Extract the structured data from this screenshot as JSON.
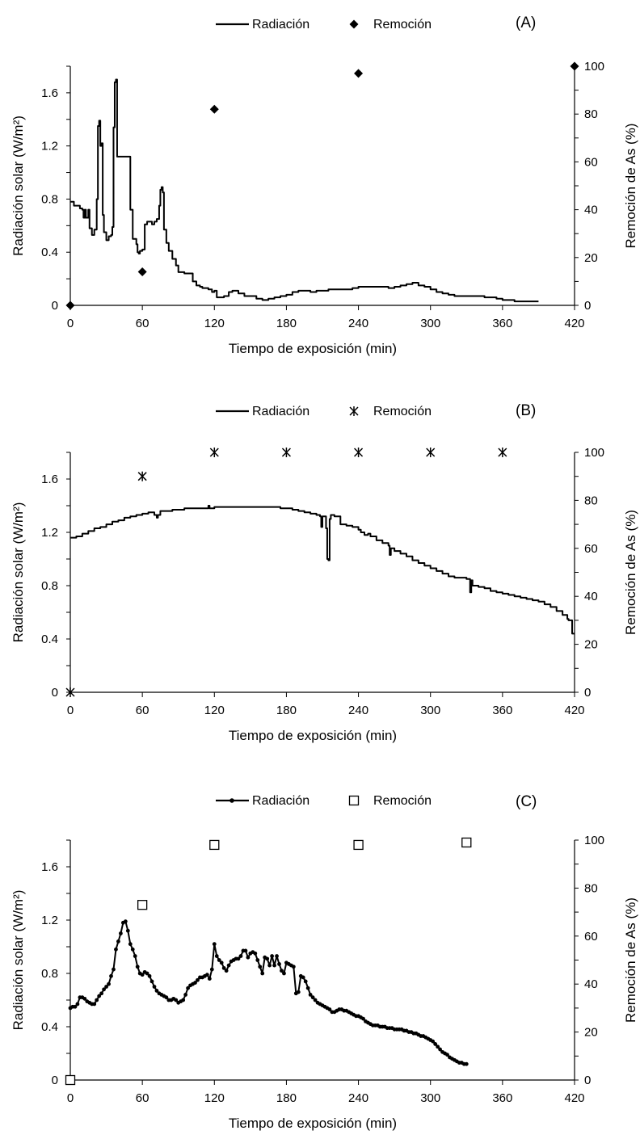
{
  "chart_data": [
    {
      "type": "line",
      "panel_label": "(A)",
      "xlabel": "Tiempo de exposición (min)",
      "ylabel": "Radiación solar (W/m²)",
      "y2label": "Remoción de As (%)",
      "xlim": [
        0,
        420
      ],
      "xticks": [
        "0",
        "60",
        "120",
        "180",
        "240",
        "300",
        "360",
        "420"
      ],
      "ylim": [
        0,
        1.8
      ],
      "yticks": [
        "0",
        "0.4",
        "0.8",
        "1.2",
        "1.6"
      ],
      "y2lim": [
        0,
        100
      ],
      "y2ticks": [
        "0",
        "20",
        "40",
        "60",
        "80",
        "100"
      ],
      "grid": false,
      "legend": {
        "position": "top",
        "entries": [
          "Radiación",
          "Remoción"
        ]
      },
      "series": [
        {
          "name": "Radiación",
          "axis": "left",
          "style": "step-line",
          "x": [
            0,
            2,
            3,
            8,
            10,
            11,
            12,
            13,
            15,
            16,
            18,
            20,
            22,
            23,
            24,
            25,
            26,
            27,
            28,
            29,
            30,
            32,
            34,
            35,
            36,
            37,
            38,
            39,
            40,
            42,
            44,
            45,
            48,
            50,
            52,
            53,
            55,
            56,
            57,
            58,
            60,
            62,
            64,
            66,
            68,
            70,
            72,
            74,
            75,
            76,
            77,
            78,
            80,
            82,
            85,
            88,
            90,
            95,
            100,
            102,
            105,
            108,
            110,
            115,
            118,
            120,
            122,
            125,
            128,
            132,
            135,
            140,
            145,
            150,
            155,
            160,
            165,
            170,
            175,
            180,
            185,
            190,
            195,
            200,
            205,
            210,
            215,
            220,
            225,
            230,
            235,
            240,
            245,
            250,
            255,
            260,
            265,
            270,
            275,
            280,
            285,
            290,
            295,
            300,
            305,
            310,
            315,
            320,
            330,
            340,
            345,
            350,
            355,
            360,
            370,
            380,
            390
          ],
          "y": [
            0.78,
            0.78,
            0.75,
            0.73,
            0.72,
            0.66,
            0.72,
            0.66,
            0.72,
            0.58,
            0.53,
            0.57,
            0.8,
            1.35,
            1.39,
            1.2,
            1.22,
            0.68,
            0.55,
            0.55,
            0.49,
            0.52,
            0.53,
            0.59,
            1.34,
            1.68,
            1.7,
            1.12,
            1.12,
            1.12,
            1.12,
            1.12,
            1.12,
            0.72,
            0.5,
            0.5,
            0.46,
            0.4,
            0.39,
            0.41,
            0.42,
            0.61,
            0.63,
            0.63,
            0.61,
            0.63,
            0.65,
            0.75,
            0.87,
            0.89,
            0.85,
            0.57,
            0.47,
            0.41,
            0.35,
            0.3,
            0.25,
            0.24,
            0.24,
            0.18,
            0.15,
            0.14,
            0.13,
            0.12,
            0.1,
            0.11,
            0.06,
            0.06,
            0.07,
            0.1,
            0.11,
            0.09,
            0.07,
            0.07,
            0.05,
            0.04,
            0.05,
            0.06,
            0.07,
            0.08,
            0.1,
            0.11,
            0.11,
            0.1,
            0.11,
            0.11,
            0.12,
            0.12,
            0.12,
            0.12,
            0.13,
            0.14,
            0.14,
            0.14,
            0.14,
            0.14,
            0.13,
            0.14,
            0.15,
            0.16,
            0.17,
            0.15,
            0.14,
            0.12,
            0.1,
            0.09,
            0.08,
            0.07,
            0.07,
            0.07,
            0.06,
            0.06,
            0.05,
            0.04,
            0.03,
            0.03,
            0.03
          ]
        },
        {
          "name": "Remoción",
          "axis": "right",
          "style": "marker-diamond",
          "x": [
            0,
            60,
            120,
            240,
            420
          ],
          "y": [
            0,
            14,
            82,
            97,
            100
          ]
        }
      ]
    },
    {
      "type": "line",
      "panel_label": "(B)",
      "xlabel": "Tiempo de exposición (min)",
      "ylabel": "Radiación solar (W/m²)",
      "y2label": "Remoción de As (%)",
      "xlim": [
        0,
        420
      ],
      "xticks": [
        "0",
        "60",
        "120",
        "180",
        "240",
        "300",
        "360",
        "420"
      ],
      "ylim": [
        0,
        1.8
      ],
      "yticks": [
        "0",
        "0.4",
        "0.8",
        "1.2",
        "1.6"
      ],
      "y2lim": [
        0,
        100
      ],
      "y2ticks": [
        "0",
        "20",
        "40",
        "60",
        "80",
        "100"
      ],
      "grid": false,
      "legend": {
        "position": "top",
        "entries": [
          "Radiación",
          "Remoción"
        ]
      },
      "series": [
        {
          "name": "Radiación",
          "axis": "left",
          "style": "step-line",
          "x": [
            0,
            5,
            10,
            15,
            20,
            25,
            30,
            35,
            40,
            45,
            50,
            55,
            60,
            65,
            70,
            72,
            73,
            75,
            80,
            85,
            90,
            95,
            100,
            105,
            110,
            114,
            115,
            116,
            120,
            125,
            130,
            135,
            140,
            145,
            150,
            155,
            160,
            165,
            170,
            175,
            180,
            185,
            190,
            195,
            200,
            205,
            208,
            209,
            210,
            212,
            213,
            214,
            215,
            216,
            217,
            218,
            220,
            225,
            230,
            235,
            240,
            242,
            245,
            248,
            250,
            255,
            260,
            265,
            266,
            267,
            270,
            275,
            280,
            285,
            290,
            295,
            300,
            305,
            310,
            315,
            320,
            325,
            330,
            333,
            334,
            335,
            340,
            345,
            350,
            355,
            360,
            365,
            370,
            375,
            380,
            385,
            390,
            395,
            400,
            405,
            410,
            414,
            415,
            416,
            418,
            420
          ],
          "y": [
            1.16,
            1.17,
            1.19,
            1.21,
            1.23,
            1.24,
            1.26,
            1.28,
            1.29,
            1.31,
            1.32,
            1.33,
            1.34,
            1.35,
            1.33,
            1.31,
            1.33,
            1.36,
            1.36,
            1.37,
            1.37,
            1.38,
            1.38,
            1.38,
            1.38,
            1.38,
            1.4,
            1.38,
            1.39,
            1.39,
            1.39,
            1.39,
            1.39,
            1.39,
            1.39,
            1.39,
            1.39,
            1.39,
            1.39,
            1.38,
            1.38,
            1.37,
            1.36,
            1.35,
            1.34,
            1.33,
            1.32,
            1.24,
            1.32,
            1.32,
            1.23,
            1.0,
            0.99,
            1.3,
            1.33,
            1.33,
            1.32,
            1.26,
            1.25,
            1.24,
            1.22,
            1.2,
            1.18,
            1.19,
            1.17,
            1.14,
            1.12,
            1.1,
            1.03,
            1.08,
            1.06,
            1.04,
            1.02,
            0.99,
            0.97,
            0.95,
            0.93,
            0.91,
            0.89,
            0.87,
            0.86,
            0.86,
            0.85,
            0.75,
            0.84,
            0.8,
            0.79,
            0.78,
            0.76,
            0.75,
            0.74,
            0.73,
            0.72,
            0.71,
            0.7,
            0.69,
            0.68,
            0.66,
            0.64,
            0.61,
            0.58,
            0.55,
            0.54,
            0.54,
            0.44,
            0.44
          ]
        },
        {
          "name": "Remoción",
          "axis": "right",
          "style": "marker-asterisk",
          "x": [
            0,
            60,
            120,
            180,
            240,
            300,
            360
          ],
          "y": [
            0,
            90,
            100,
            100,
            100,
            100,
            100
          ]
        }
      ]
    },
    {
      "type": "line",
      "panel_label": "(C)",
      "xlabel": "Tiempo de exposición (min)",
      "ylabel": "Radiación solar (W/m²)",
      "y2label": "Remoción de As (%)",
      "xlim": [
        0,
        420
      ],
      "xticks": [
        "0",
        "60",
        "120",
        "180",
        "240",
        "300",
        "360",
        "420"
      ],
      "ylim": [
        0,
        1.8
      ],
      "yticks": [
        "0",
        "0.4",
        "0.8",
        "1.2",
        "1.6"
      ],
      "y2lim": [
        0,
        100
      ],
      "y2ticks": [
        "0",
        "20",
        "40",
        "60",
        "80",
        "100"
      ],
      "grid": false,
      "legend": {
        "position": "top",
        "entries": [
          "Radiación",
          "Remoción"
        ]
      },
      "series": [
        {
          "name": "Radiación",
          "axis": "left",
          "style": "line-dot",
          "x": [
            0,
            2,
            4,
            6,
            8,
            10,
            12,
            14,
            16,
            18,
            20,
            22,
            24,
            26,
            28,
            30,
            32,
            34,
            36,
            38,
            40,
            42,
            44,
            46,
            48,
            50,
            52,
            54,
            56,
            58,
            60,
            62,
            64,
            66,
            68,
            70,
            72,
            74,
            76,
            78,
            80,
            82,
            84,
            86,
            88,
            90,
            92,
            94,
            96,
            98,
            100,
            102,
            104,
            106,
            108,
            110,
            112,
            114,
            116,
            118,
            120,
            122,
            124,
            126,
            128,
            130,
            132,
            134,
            136,
            138,
            140,
            142,
            144,
            146,
            148,
            150,
            152,
            154,
            156,
            158,
            160,
            162,
            164,
            166,
            168,
            170,
            172,
            174,
            176,
            178,
            180,
            182,
            184,
            186,
            188,
            190,
            192,
            194,
            196,
            198,
            200,
            202,
            204,
            206,
            208,
            210,
            212,
            214,
            216,
            218,
            220,
            222,
            224,
            226,
            228,
            230,
            232,
            234,
            236,
            238,
            240,
            242,
            244,
            246,
            248,
            250,
            252,
            254,
            256,
            258,
            260,
            262,
            264,
            266,
            268,
            270,
            272,
            274,
            276,
            278,
            280,
            282,
            284,
            286,
            288,
            290,
            292,
            294,
            296,
            298,
            300,
            302,
            304,
            306,
            308,
            310,
            312,
            314,
            316,
            318,
            320,
            322,
            324,
            326,
            328,
            330
          ],
          "y": [
            0.54,
            0.55,
            0.55,
            0.57,
            0.62,
            0.62,
            0.61,
            0.59,
            0.58,
            0.57,
            0.57,
            0.6,
            0.63,
            0.65,
            0.68,
            0.7,
            0.72,
            0.78,
            0.83,
            0.98,
            1.04,
            1.1,
            1.18,
            1.19,
            1.12,
            1.02,
            0.98,
            0.93,
            0.85,
            0.8,
            0.79,
            0.81,
            0.8,
            0.78,
            0.74,
            0.7,
            0.67,
            0.65,
            0.64,
            0.63,
            0.62,
            0.6,
            0.6,
            0.61,
            0.6,
            0.58,
            0.59,
            0.6,
            0.64,
            0.69,
            0.71,
            0.72,
            0.73,
            0.75,
            0.77,
            0.77,
            0.78,
            0.79,
            0.76,
            0.83,
            1.02,
            0.93,
            0.9,
            0.88,
            0.84,
            0.82,
            0.86,
            0.89,
            0.9,
            0.91,
            0.91,
            0.93,
            0.97,
            0.97,
            0.92,
            0.95,
            0.96,
            0.95,
            0.9,
            0.85,
            0.8,
            0.92,
            0.91,
            0.86,
            0.93,
            0.86,
            0.93,
            0.87,
            0.82,
            0.8,
            0.88,
            0.87,
            0.86,
            0.85,
            0.65,
            0.66,
            0.78,
            0.77,
            0.74,
            0.69,
            0.64,
            0.62,
            0.6,
            0.58,
            0.57,
            0.56,
            0.55,
            0.54,
            0.53,
            0.51,
            0.51,
            0.52,
            0.53,
            0.53,
            0.52,
            0.52,
            0.51,
            0.5,
            0.49,
            0.48,
            0.48,
            0.47,
            0.46,
            0.44,
            0.43,
            0.42,
            0.41,
            0.41,
            0.41,
            0.4,
            0.4,
            0.4,
            0.39,
            0.39,
            0.39,
            0.38,
            0.38,
            0.38,
            0.38,
            0.37,
            0.37,
            0.36,
            0.36,
            0.35,
            0.35,
            0.34,
            0.33,
            0.33,
            0.32,
            0.31,
            0.3,
            0.29,
            0.27,
            0.25,
            0.23,
            0.21,
            0.2,
            0.19,
            0.17,
            0.16,
            0.15,
            0.14,
            0.13,
            0.13,
            0.12,
            0.12
          ]
        },
        {
          "name": "Remoción",
          "axis": "right",
          "style": "marker-square-open",
          "x": [
            0,
            60,
            120,
            240,
            330
          ],
          "y": [
            0,
            73,
            98,
            98,
            99
          ]
        }
      ]
    }
  ]
}
